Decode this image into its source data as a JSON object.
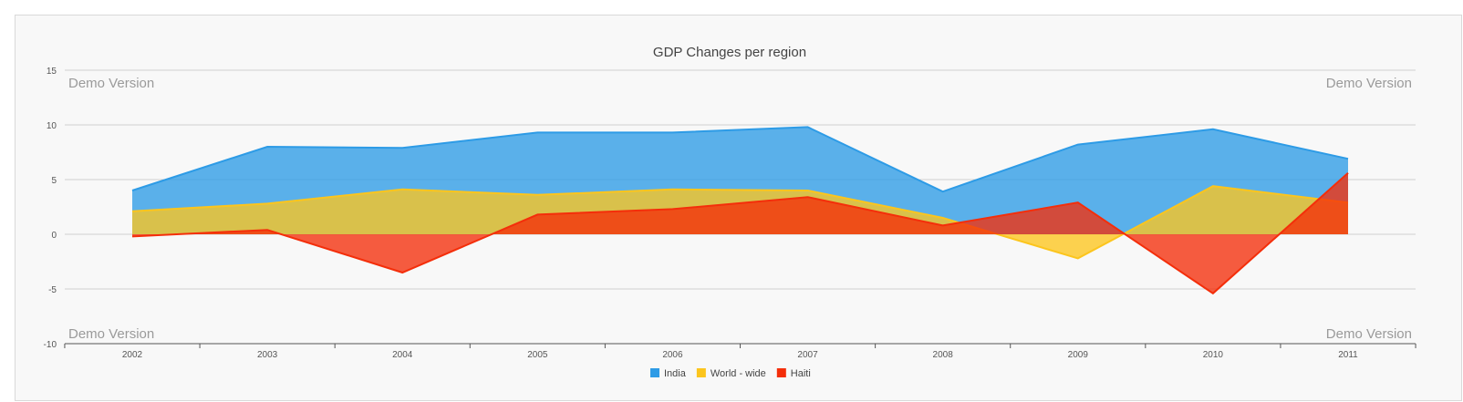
{
  "chart_data": {
    "type": "area",
    "title": "GDP Changes per region",
    "categories": [
      "2002",
      "2003",
      "2004",
      "2005",
      "2006",
      "2007",
      "2008",
      "2009",
      "2010",
      "2011"
    ],
    "ylim": [
      -10,
      15
    ],
    "yticks": [
      15,
      10,
      5,
      0,
      -5,
      -10
    ],
    "grid": true,
    "legend_position": "bottom-center",
    "series": [
      {
        "name": "India",
        "color": "#2d9be6",
        "values": [
          4.0,
          8.0,
          7.9,
          9.3,
          9.3,
          9.8,
          3.9,
          8.2,
          9.6,
          6.9
        ]
      },
      {
        "name": "World - wide",
        "color": "#fcc51d",
        "values": [
          2.1,
          2.8,
          4.1,
          3.6,
          4.1,
          4.0,
          1.5,
          -2.2,
          4.4,
          2.9
        ]
      },
      {
        "name": "Haiti",
        "color": "#f42e0a",
        "values": [
          -0.2,
          0.4,
          -3.5,
          1.8,
          2.3,
          3.4,
          0.8,
          2.9,
          -5.4,
          5.6
        ]
      }
    ],
    "watermark": "Demo Version"
  }
}
